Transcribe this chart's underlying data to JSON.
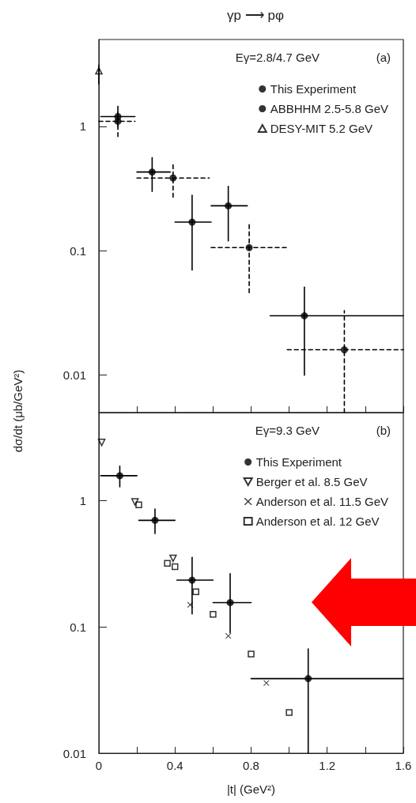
{
  "chart_data": [
    {
      "type": "scatter",
      "title": "γp ⟶ pφ",
      "annotations": [
        "Eγ=2.8/4.7 GeV",
        "(a)"
      ],
      "log": "y",
      "xlim": [
        0,
        1.6
      ],
      "ylim": [
        0.005,
        5
      ],
      "xticks": [
        0,
        {
          "value": 0.2,
          "label": null
        },
        0.4,
        {
          "value": 0.6,
          "label": null
        },
        0.8,
        {
          "value": 1.0,
          "label": null
        },
        1.2,
        {
          "value": 1.4,
          "label": null
        },
        1.6
      ],
      "yticks": [
        0.01,
        0.1,
        1
      ],
      "tick_labels": "y",
      "grid": false,
      "legend": "top right",
      "series": [
        {
          "name": "This Experiment",
          "color": "#000000",
          "marker": "circle",
          "line_style": "solid",
          "x": [
            0.1,
            0.28,
            0.49,
            0.68,
            1.08
          ],
          "values": [
            1.2,
            0.43,
            0.17,
            0.23,
            0.03
          ],
          "errors": [
            [
              1.0,
              1.45
            ],
            [
              0.3,
              0.56
            ],
            [
              0.07,
              0.28
            ],
            [
              0.12,
              0.33
            ],
            [
              0.01,
              0.051
            ]
          ],
          "xerrors": [
            [
              0.01,
              0.19
            ],
            [
              0.2,
              0.375
            ],
            [
              0.4,
              0.59
            ],
            [
              0.59,
              0.78
            ],
            [
              0.9,
              1.6
            ]
          ]
        },
        {
          "name": "ABBHHM 2.5-5.8 GeV",
          "color": "#000000",
          "marker": "circle",
          "line_style": "dashed",
          "x": [
            0.1,
            0.39,
            0.79,
            1.29
          ],
          "values": [
            1.1,
            0.385,
            0.106,
            0.016
          ],
          "errors": [
            [
              0.83,
              1.3
            ],
            [
              0.27,
              0.5
            ],
            [
              0.046,
              0.164
            ],
            [
              0.005,
              0.033
            ]
          ],
          "xerrors": [
            [
              0.0,
              0.19
            ],
            [
              0.2,
              0.58
            ],
            [
              0.59,
              0.99
            ],
            [
              0.99,
              1.6
            ]
          ]
        },
        {
          "name": "DESY-MIT 5.2 GeV",
          "color": "#000000",
          "marker": "triangle",
          "line_style": "solid",
          "x": [
            0.0
          ],
          "values": [
            2.8
          ],
          "errors": [
            [
              2.2,
              3.1
            ]
          ]
        }
      ]
    },
    {
      "type": "scatter",
      "xlabel": "|t| (GeV²)",
      "ylabel": "dσ/dt (μb/GeV²)",
      "annotations": [
        "Eγ=9.3 GeV",
        "(b)"
      ],
      "log": "y",
      "xlim": [
        0,
        1.6
      ],
      "ylim": [
        0.01,
        5
      ],
      "xticks": [
        0,
        {
          "value": 0.2,
          "label": null
        },
        0.4,
        {
          "value": 0.6,
          "label": null
        },
        0.8,
        {
          "value": 1.0,
          "label": null
        },
        1.2,
        {
          "value": 1.4,
          "label": null
        },
        1.6
      ],
      "yticks": [
        0.01,
        0.1,
        1
      ],
      "grid": false,
      "legend": "top right",
      "series": [
        {
          "name": "This Experiment",
          "color": "#000000",
          "marker": "circle",
          "line_style": "solid",
          "x": [
            0.11,
            0.295,
            0.49,
            0.69,
            1.1
          ],
          "values": [
            1.58,
            0.7,
            0.235,
            0.156,
            0.039
          ],
          "errors": [
            [
              1.29,
              1.88
            ],
            [
              0.55,
              0.86
            ],
            [
              0.127,
              0.356
            ],
            [
              0.09,
              0.265
            ],
            [
              0.01,
              0.067
            ]
          ],
          "xerrors": [
            [
              0.01,
              0.2
            ],
            [
              0.21,
              0.4
            ],
            [
              0.41,
              0.6
            ],
            [
              0.6,
              0.8
            ],
            [
              0.8,
              1.6
            ]
          ]
        },
        {
          "name": "Berger et al. 8.5 GeV",
          "color": "#000000",
          "marker": "triangle-down",
          "x": [
            0.015,
            0.19,
            0.39
          ],
          "values": [
            2.9,
            0.98,
            0.35
          ]
        },
        {
          "name": "Anderson et al. 11.5 GeV",
          "color": "#000000",
          "marker": "cross",
          "x": [
            0.48,
            0.68,
            0.88
          ],
          "values": [
            0.15,
            0.085,
            0.036
          ]
        },
        {
          "name": "Anderson et al. 12 GeV",
          "color": "#000000",
          "marker": "square",
          "x": [
            0.21,
            0.36,
            0.4,
            0.51,
            0.6,
            0.8,
            1.0
          ],
          "values": [
            0.93,
            0.32,
            0.3,
            0.19,
            0.126,
            0.061,
            0.021
          ]
        }
      ]
    }
  ]
}
